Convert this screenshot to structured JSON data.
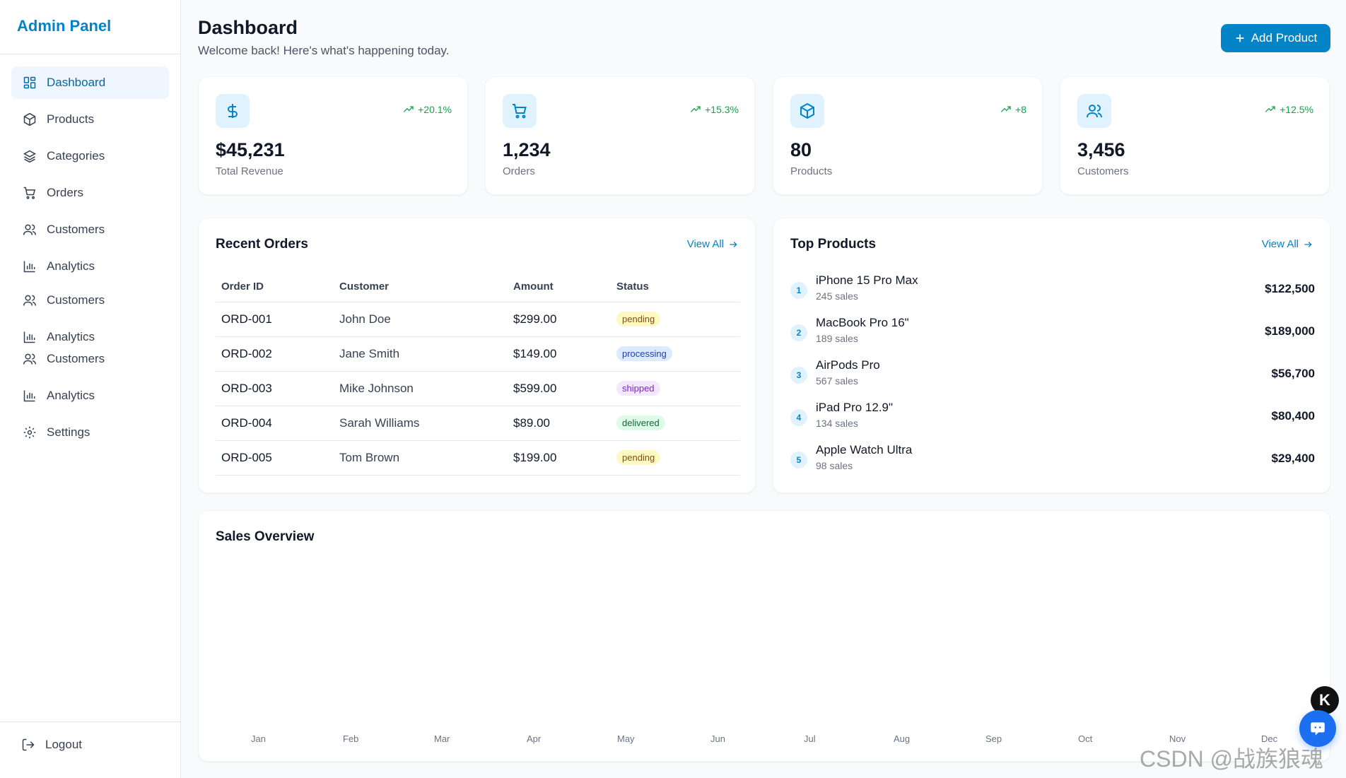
{
  "brand": "Admin Panel",
  "nav": [
    {
      "label": "Dashboard",
      "icon": "dashboard-icon"
    },
    {
      "label": "Products",
      "icon": "box-icon"
    },
    {
      "label": "Categories",
      "icon": "layers-icon"
    },
    {
      "label": "Orders",
      "icon": "cart-icon"
    },
    {
      "label": "Customers",
      "icon": "users-icon"
    },
    {
      "label": "Analytics",
      "icon": "bar-chart-icon"
    },
    {
      "label": "Customers",
      "icon": "users-icon"
    },
    {
      "label": "Analytics",
      "icon": "bar-chart-icon"
    },
    {
      "label": "Customers",
      "icon": "users-icon"
    },
    {
      "label": "Analytics",
      "icon": "bar-chart-icon"
    },
    {
      "label": "Settings",
      "icon": "gear-icon"
    }
  ],
  "logout": "Logout",
  "header": {
    "title": "Dashboard",
    "subtitle": "Welcome back! Here's what's happening today.",
    "add_button": "Add Product"
  },
  "stats": [
    {
      "value": "$45,231",
      "label": "Total Revenue",
      "change": "+20.1%",
      "icon": "dollar-icon"
    },
    {
      "value": "1,234",
      "label": "Orders",
      "change": "+15.3%",
      "icon": "cart-icon"
    },
    {
      "value": "80",
      "label": "Products",
      "change": "+8",
      "icon": "box-icon"
    },
    {
      "value": "3,456",
      "label": "Customers",
      "change": "+12.5%",
      "icon": "users-icon"
    }
  ],
  "recent_orders": {
    "title": "Recent Orders",
    "view_all": "View All",
    "columns": [
      "Order ID",
      "Customer",
      "Amount",
      "Status"
    ],
    "rows": [
      {
        "id": "ORD-001",
        "customer": "John Doe",
        "amount": "$299.00",
        "status": "pending"
      },
      {
        "id": "ORD-002",
        "customer": "Jane Smith",
        "amount": "$149.00",
        "status": "processing"
      },
      {
        "id": "ORD-003",
        "customer": "Mike Johnson",
        "amount": "$599.00",
        "status": "shipped"
      },
      {
        "id": "ORD-004",
        "customer": "Sarah Williams",
        "amount": "$89.00",
        "status": "delivered"
      },
      {
        "id": "ORD-005",
        "customer": "Tom Brown",
        "amount": "$199.00",
        "status": "pending"
      }
    ]
  },
  "top_products": {
    "title": "Top Products",
    "view_all": "View All",
    "items": [
      {
        "rank": "1",
        "name": "iPhone 15 Pro Max",
        "sales": "245 sales",
        "revenue": "$122,500"
      },
      {
        "rank": "2",
        "name": "MacBook Pro 16\"",
        "sales": "189 sales",
        "revenue": "$189,000"
      },
      {
        "rank": "3",
        "name": "AirPods Pro",
        "sales": "567 sales",
        "revenue": "$56,700"
      },
      {
        "rank": "4",
        "name": "iPad Pro 12.9\"",
        "sales": "134 sales",
        "revenue": "$80,400"
      },
      {
        "rank": "5",
        "name": "Apple Watch Ultra",
        "sales": "98 sales",
        "revenue": "$29,400"
      }
    ]
  },
  "sales_overview": {
    "title": "Sales Overview",
    "months": [
      "Jan",
      "Feb",
      "Mar",
      "Apr",
      "May",
      "Jun",
      "Jul",
      "Aug",
      "Sep",
      "Oct",
      "Nov",
      "Dec"
    ]
  },
  "widgets": {
    "k_badge": "K"
  },
  "watermark": "CSDN @战族狼魂",
  "colors": {
    "accent": "#0284c7",
    "positive": "#16a34a",
    "background": "#f8fafc"
  }
}
